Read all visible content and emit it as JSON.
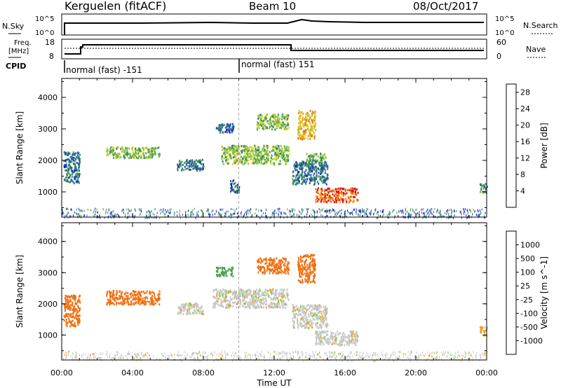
{
  "header": {
    "station": "Kerguelen (fitACF)",
    "beam": "Beam 10",
    "date": "08/Oct/2017"
  },
  "noise_panel": {
    "left_label": "N.Sky",
    "right_label": "N.Search",
    "left_ticks": [
      "10^5",
      "10^0"
    ],
    "right_ticks": [
      "10^5",
      "10^0"
    ]
  },
  "freq_panel": {
    "left_label_1": "Freq.",
    "left_label_2": "[MHz]",
    "right_label": "Nave",
    "left_ticks": [
      "18",
      "8"
    ],
    "right_ticks": [
      "60",
      "0"
    ],
    "cpid_label": "CPID",
    "cpid_segments": [
      {
        "label": "normal (fast) -151"
      },
      {
        "label": "normal (fast) 151"
      }
    ]
  },
  "chart_data": [
    {
      "type": "heatmap",
      "title": "",
      "xlabel": "",
      "ylabel": "Slant Range [km]",
      "x_ticks": [
        "00:00",
        "04:00",
        "08:00",
        "12:00",
        "16:00",
        "20:00",
        "00:00"
      ],
      "xlim_hours": [
        0,
        24
      ],
      "y_ticks": [
        "1000",
        "2000",
        "3000",
        "4000"
      ],
      "ylim_km": [
        200,
        4600
      ],
      "colorbar": {
        "label": "Power [dB]",
        "ticks": [
          "4",
          "8",
          "12",
          "16",
          "20",
          "24",
          "28"
        ],
        "range": [
          0,
          30
        ],
        "colors": [
          "#1010e0",
          "#1f4fb0",
          "#2f7a70",
          "#4ea050",
          "#8cc63a",
          "#e0d020",
          "#f0a020",
          "#f06a10",
          "#e01010"
        ]
      },
      "regions": [
        {
          "x0": 0.1,
          "x1": 1.0,
          "y0": 1300,
          "y1": 2300,
          "value": 8
        },
        {
          "x0": 2.5,
          "x1": 5.5,
          "y0": 2100,
          "y1": 2450,
          "value": 14
        },
        {
          "x0": 6.5,
          "x1": 8.0,
          "y0": 1700,
          "y1": 2050,
          "value": 8
        },
        {
          "x0": 8.7,
          "x1": 9.7,
          "y0": 2900,
          "y1": 3200,
          "value": 6
        },
        {
          "x0": 9.0,
          "x1": 12.8,
          "y0": 1900,
          "y1": 2500,
          "value": 14
        },
        {
          "x0": 11.0,
          "x1": 12.8,
          "y0": 3000,
          "y1": 3500,
          "value": 14
        },
        {
          "x0": 13.0,
          "x1": 15.0,
          "y0": 1250,
          "y1": 2000,
          "value": 8
        },
        {
          "x0": 13.3,
          "x1": 14.3,
          "y0": 2700,
          "y1": 3600,
          "value": 20
        },
        {
          "x0": 13.8,
          "x1": 14.9,
          "y0": 2000,
          "y1": 2250,
          "value": 12
        },
        {
          "x0": 14.3,
          "x1": 16.7,
          "y0": 700,
          "y1": 1150,
          "value": 26
        },
        {
          "x0": 9.5,
          "x1": 10.0,
          "y0": 1000,
          "y1": 1400,
          "value": 6
        },
        {
          "x0": 23.6,
          "x1": 24.0,
          "y0": 1000,
          "y1": 1300,
          "value": 10
        }
      ]
    },
    {
      "type": "heatmap",
      "title": "",
      "xlabel": "Time UT",
      "ylabel": "Slant Range [km]",
      "x_ticks": [
        "00:00",
        "04:00",
        "08:00",
        "12:00",
        "16:00",
        "20:00",
        "00:00"
      ],
      "xlim_hours": [
        0,
        24
      ],
      "y_ticks": [
        "1000",
        "2000",
        "3000",
        "4000"
      ],
      "ylim_km": [
        200,
        4600
      ],
      "colorbar": {
        "label": "Velocity [m s^-1]",
        "ticks": [
          "1000",
          "500",
          "100",
          "25",
          "-25",
          "-100",
          "-500",
          "-1000"
        ],
        "colors": [
          "#1f3fb0",
          "#2f7a60",
          "#4ea050",
          "#80cc40",
          "#c8c8c8",
          "#f0a020",
          "#f07010",
          "#e03010",
          "#e01010"
        ]
      },
      "regions": [
        {
          "x0": 0.1,
          "x1": 1.0,
          "y0": 1300,
          "y1": 2300,
          "value": -300
        },
        {
          "x0": 2.5,
          "x1": 5.5,
          "y0": 2000,
          "y1": 2450,
          "value": -300
        },
        {
          "x0": 6.5,
          "x1": 8.0,
          "y0": 1700,
          "y1": 2050,
          "value": 0
        },
        {
          "x0": 8.7,
          "x1": 9.7,
          "y0": 2900,
          "y1": 3200,
          "value": 200
        },
        {
          "x0": 8.5,
          "x1": 12.8,
          "y0": 1900,
          "y1": 2500,
          "value": 0
        },
        {
          "x0": 11.0,
          "x1": 12.8,
          "y0": 3000,
          "y1": 3500,
          "value": -300
        },
        {
          "x0": 13.0,
          "x1": 15.0,
          "y0": 1250,
          "y1": 2000,
          "value": 0
        },
        {
          "x0": 13.3,
          "x1": 14.3,
          "y0": 2700,
          "y1": 3600,
          "value": -300
        },
        {
          "x0": 14.3,
          "x1": 16.7,
          "y0": 700,
          "y1": 1150,
          "value": 0
        },
        {
          "x0": 23.6,
          "x1": 24.0,
          "y0": 1000,
          "y1": 1300,
          "value": -50
        }
      ]
    }
  ]
}
